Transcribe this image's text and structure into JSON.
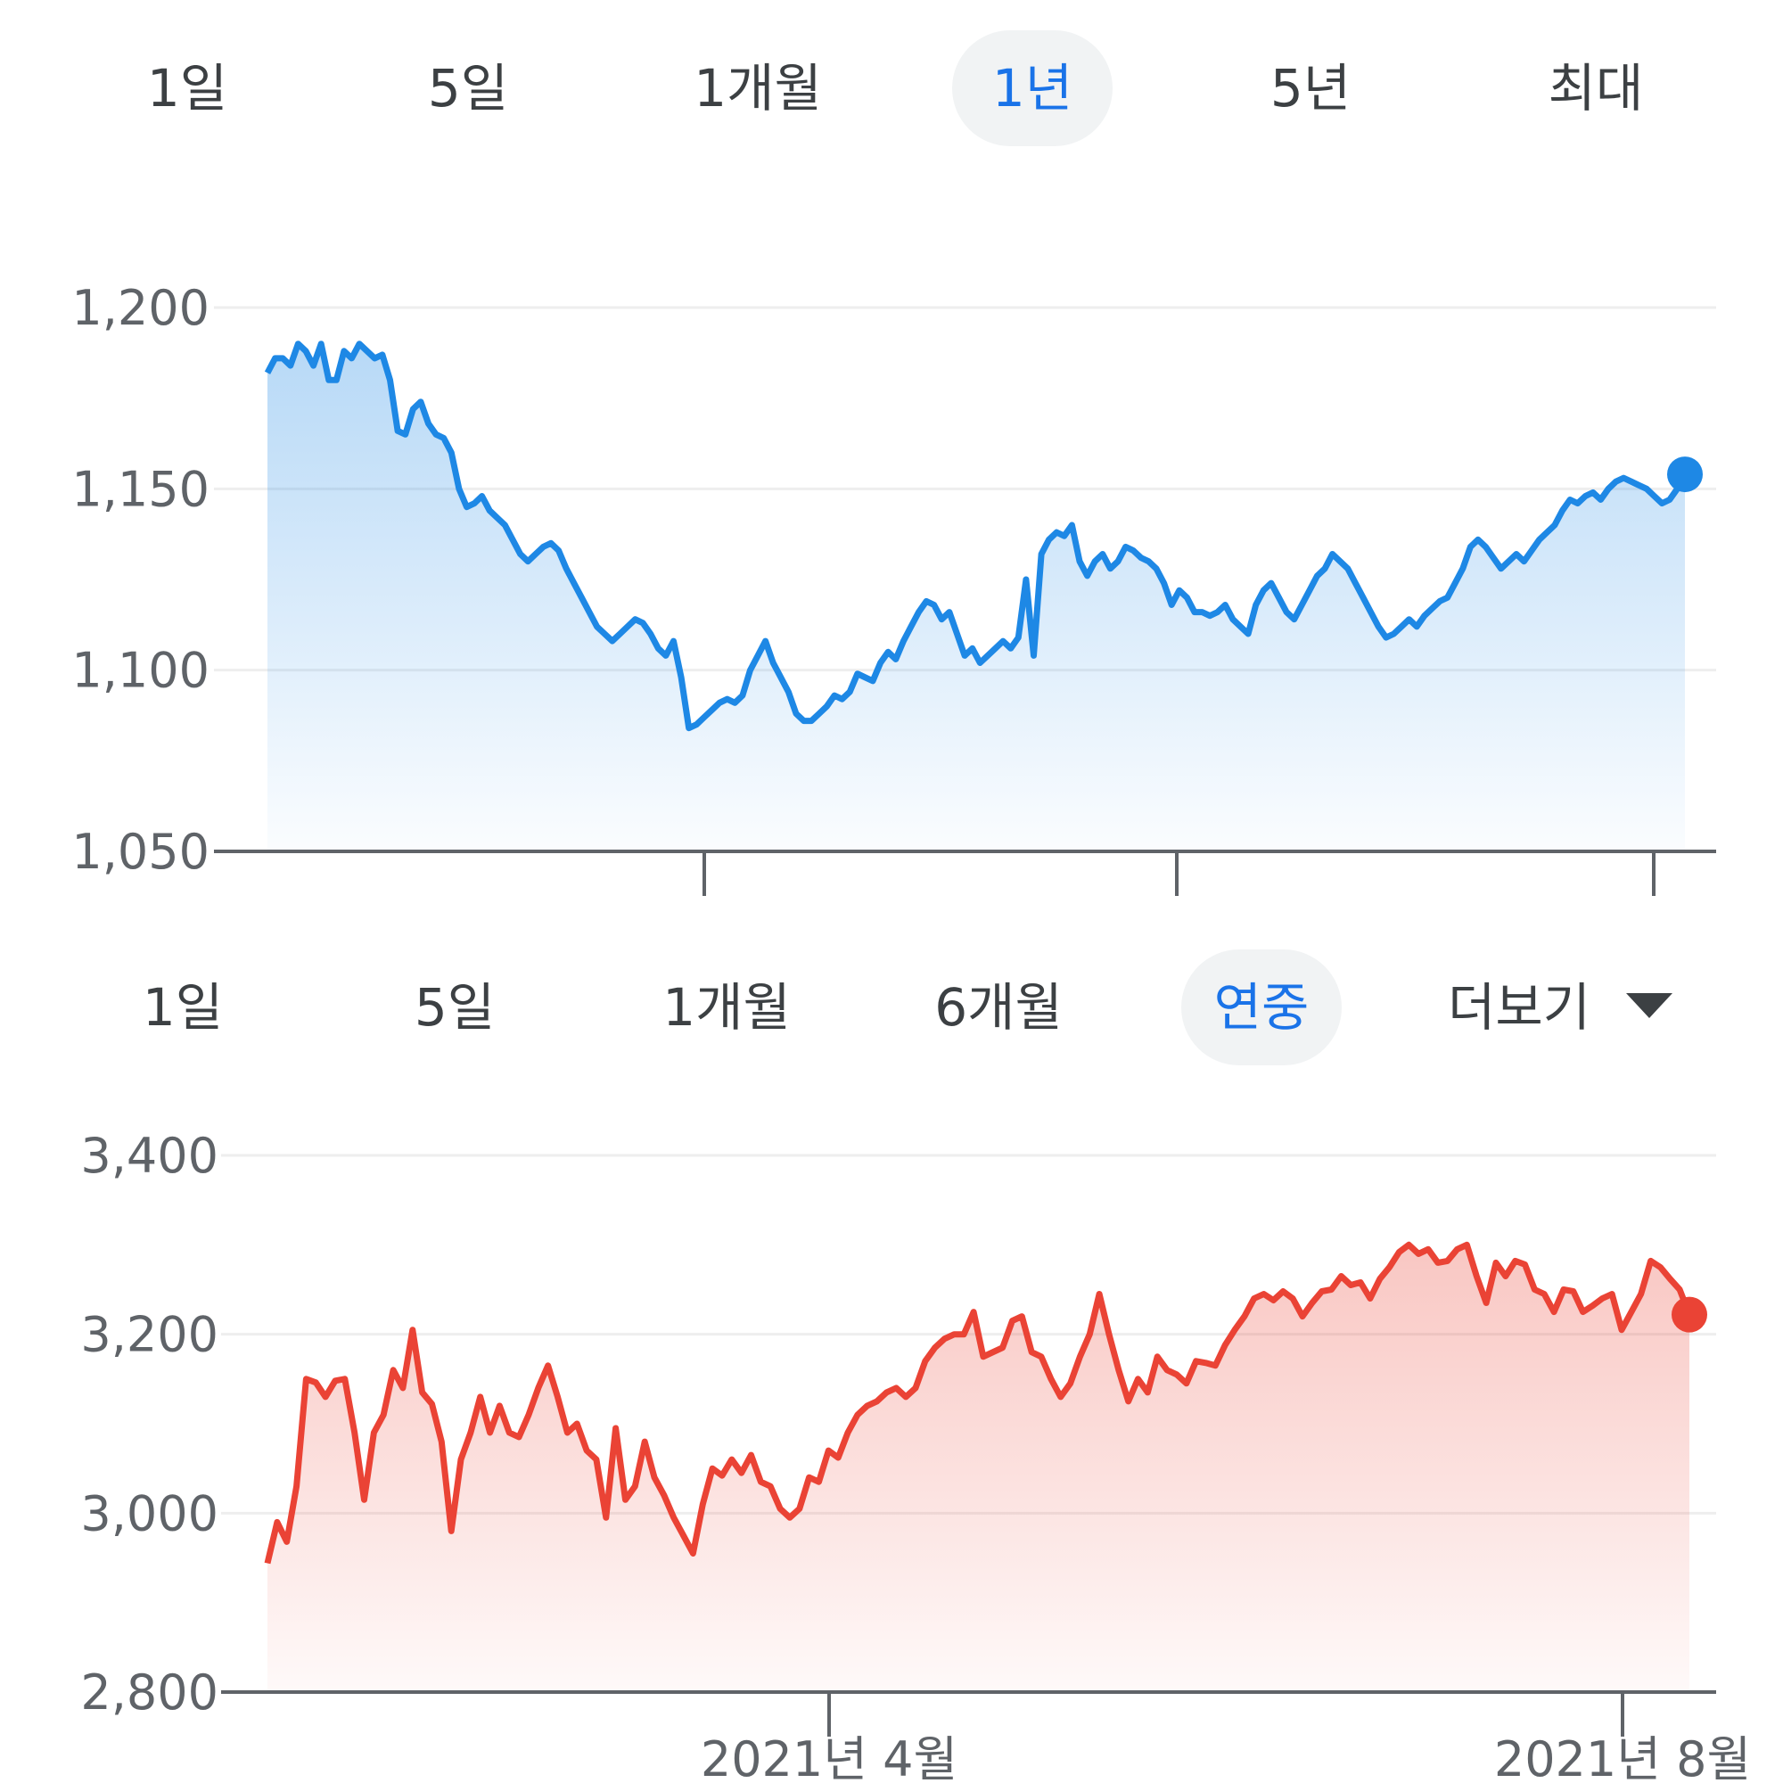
{
  "top": {
    "tabs": [
      {
        "label": "1일",
        "active": false
      },
      {
        "label": "5일",
        "active": false
      },
      {
        "label": "1개월",
        "active": false
      },
      {
        "label": "1년",
        "active": true
      },
      {
        "label": "5년",
        "active": false
      },
      {
        "label": "최대",
        "active": false
      }
    ]
  },
  "bottom": {
    "tabs": [
      {
        "label": "1일",
        "active": false
      },
      {
        "label": "5일",
        "active": false
      },
      {
        "label": "1개월",
        "active": false
      },
      {
        "label": "6개월",
        "active": false
      },
      {
        "label": "연중",
        "active": true
      }
    ],
    "more_label": "더보기"
  },
  "colors": {
    "top_line": "#1e88e5",
    "bottom_line": "#ea4335",
    "active_tab_text": "#1a73e8",
    "active_tab_bg": "#f1f3f4",
    "text": "#3c4043",
    "grid": "#eeeeee",
    "axis": "#5f6368"
  },
  "icons": {
    "more_caret": "caret-down-icon"
  },
  "chart_data": [
    {
      "type": "area",
      "title": "",
      "xlabel": "",
      "ylabel": "",
      "ylim": [
        1050,
        1200
      ],
      "y_ticks": [
        1050,
        1100,
        1150,
        1200
      ],
      "y_tick_labels": [
        "1,050",
        "1,100",
        "1,150",
        "1,200"
      ],
      "x_tick_labels": [
        "",
        "",
        ""
      ],
      "grid": true,
      "series": [
        {
          "values": [
            1182,
            1186,
            1186,
            1184,
            1190,
            1188,
            1184,
            1190,
            1180,
            1180,
            1188,
            1186,
            1190,
            1188,
            1186,
            1187,
            1180,
            1166,
            1165,
            1172,
            1174,
            1168,
            1165,
            1164,
            1160,
            1150,
            1145,
            1146,
            1148,
            1144,
            1142,
            1140,
            1136,
            1132,
            1130,
            1132,
            1134,
            1135,
            1133,
            1128,
            1124,
            1120,
            1116,
            1112,
            1110,
            1108,
            1110,
            1112,
            1114,
            1113,
            1110,
            1106,
            1104,
            1108,
            1098,
            1084,
            1085,
            1087,
            1089,
            1091,
            1092,
            1091,
            1093,
            1100,
            1104,
            1108,
            1102,
            1098,
            1094,
            1088,
            1086,
            1086,
            1088,
            1090,
            1093,
            1092,
            1094,
            1099,
            1098,
            1097,
            1102,
            1105,
            1103,
            1108,
            1112,
            1116,
            1119,
            1118,
            1114,
            1116,
            1110,
            1104,
            1106,
            1102,
            1104,
            1106,
            1108,
            1106,
            1109,
            1125,
            1104,
            1132,
            1136,
            1138,
            1137,
            1140,
            1130,
            1126,
            1130,
            1132,
            1128,
            1130,
            1134,
            1133,
            1131,
            1130,
            1128,
            1124,
            1118,
            1122,
            1120,
            1116,
            1116,
            1115,
            1116,
            1118,
            1114,
            1112,
            1110,
            1118,
            1122,
            1124,
            1120,
            1116,
            1114,
            1118,
            1122,
            1126,
            1128,
            1132,
            1130,
            1128,
            1124,
            1120,
            1116,
            1112,
            1109,
            1110,
            1112,
            1114,
            1112,
            1115,
            1117,
            1119,
            1120,
            1124,
            1128,
            1134,
            1136,
            1134,
            1131,
            1128,
            1130,
            1132,
            1130,
            1133,
            1136,
            1138,
            1140,
            1144,
            1147,
            1146,
            1148,
            1149,
            1147,
            1150,
            1152,
            1153,
            1152,
            1151,
            1150,
            1148,
            1146,
            1147,
            1150,
            1154
          ]
        }
      ]
    },
    {
      "type": "area",
      "title": "",
      "xlabel": "",
      "ylabel": "",
      "ylim": [
        2800,
        3400
      ],
      "y_ticks": [
        2800,
        3000,
        3200,
        3400
      ],
      "y_tick_labels": [
        "2,800",
        "3,000",
        "3,200",
        "3,400"
      ],
      "x_tick_labels": [
        "2021년 4월",
        "2021년 8월"
      ],
      "grid": true,
      "series": [
        {
          "values": [
            2944,
            2990,
            2968,
            3030,
            3150,
            3146,
            3130,
            3148,
            3150,
            3090,
            3015,
            3090,
            3110,
            3160,
            3140,
            3205,
            3135,
            3122,
            3080,
            2980,
            3060,
            3090,
            3130,
            3090,
            3120,
            3090,
            3085,
            3110,
            3140,
            3165,
            3130,
            3090,
            3100,
            3070,
            3060,
            2995,
            3095,
            3015,
            3030,
            3080,
            3040,
            3020,
            2995,
            2975,
            2955,
            3010,
            3050,
            3042,
            3060,
            3045,
            3065,
            3035,
            3030,
            3005,
            2995,
            3005,
            3040,
            3035,
            3070,
            3062,
            3090,
            3110,
            3120,
            3125,
            3135,
            3140,
            3130,
            3140,
            3170,
            3185,
            3195,
            3200,
            3200,
            3225,
            3175,
            3180,
            3185,
            3215,
            3220,
            3180,
            3175,
            3150,
            3130,
            3145,
            3175,
            3200,
            3245,
            3200,
            3160,
            3125,
            3150,
            3135,
            3175,
            3160,
            3155,
            3145,
            3170,
            3168,
            3165,
            3188,
            3205,
            3220,
            3240,
            3245,
            3238,
            3248,
            3240,
            3220,
            3235,
            3248,
            3250,
            3265,
            3255,
            3258,
            3240,
            3262,
            3275,
            3292,
            3300,
            3290,
            3295,
            3280,
            3282,
            3295,
            3300,
            3265,
            3235,
            3280,
            3265,
            3282,
            3278,
            3250,
            3245,
            3225,
            3250,
            3248,
            3225,
            3232,
            3240,
            3245,
            3205,
            3225,
            3245,
            3282,
            3275,
            3262,
            3250,
            3222
          ]
        }
      ]
    }
  ]
}
